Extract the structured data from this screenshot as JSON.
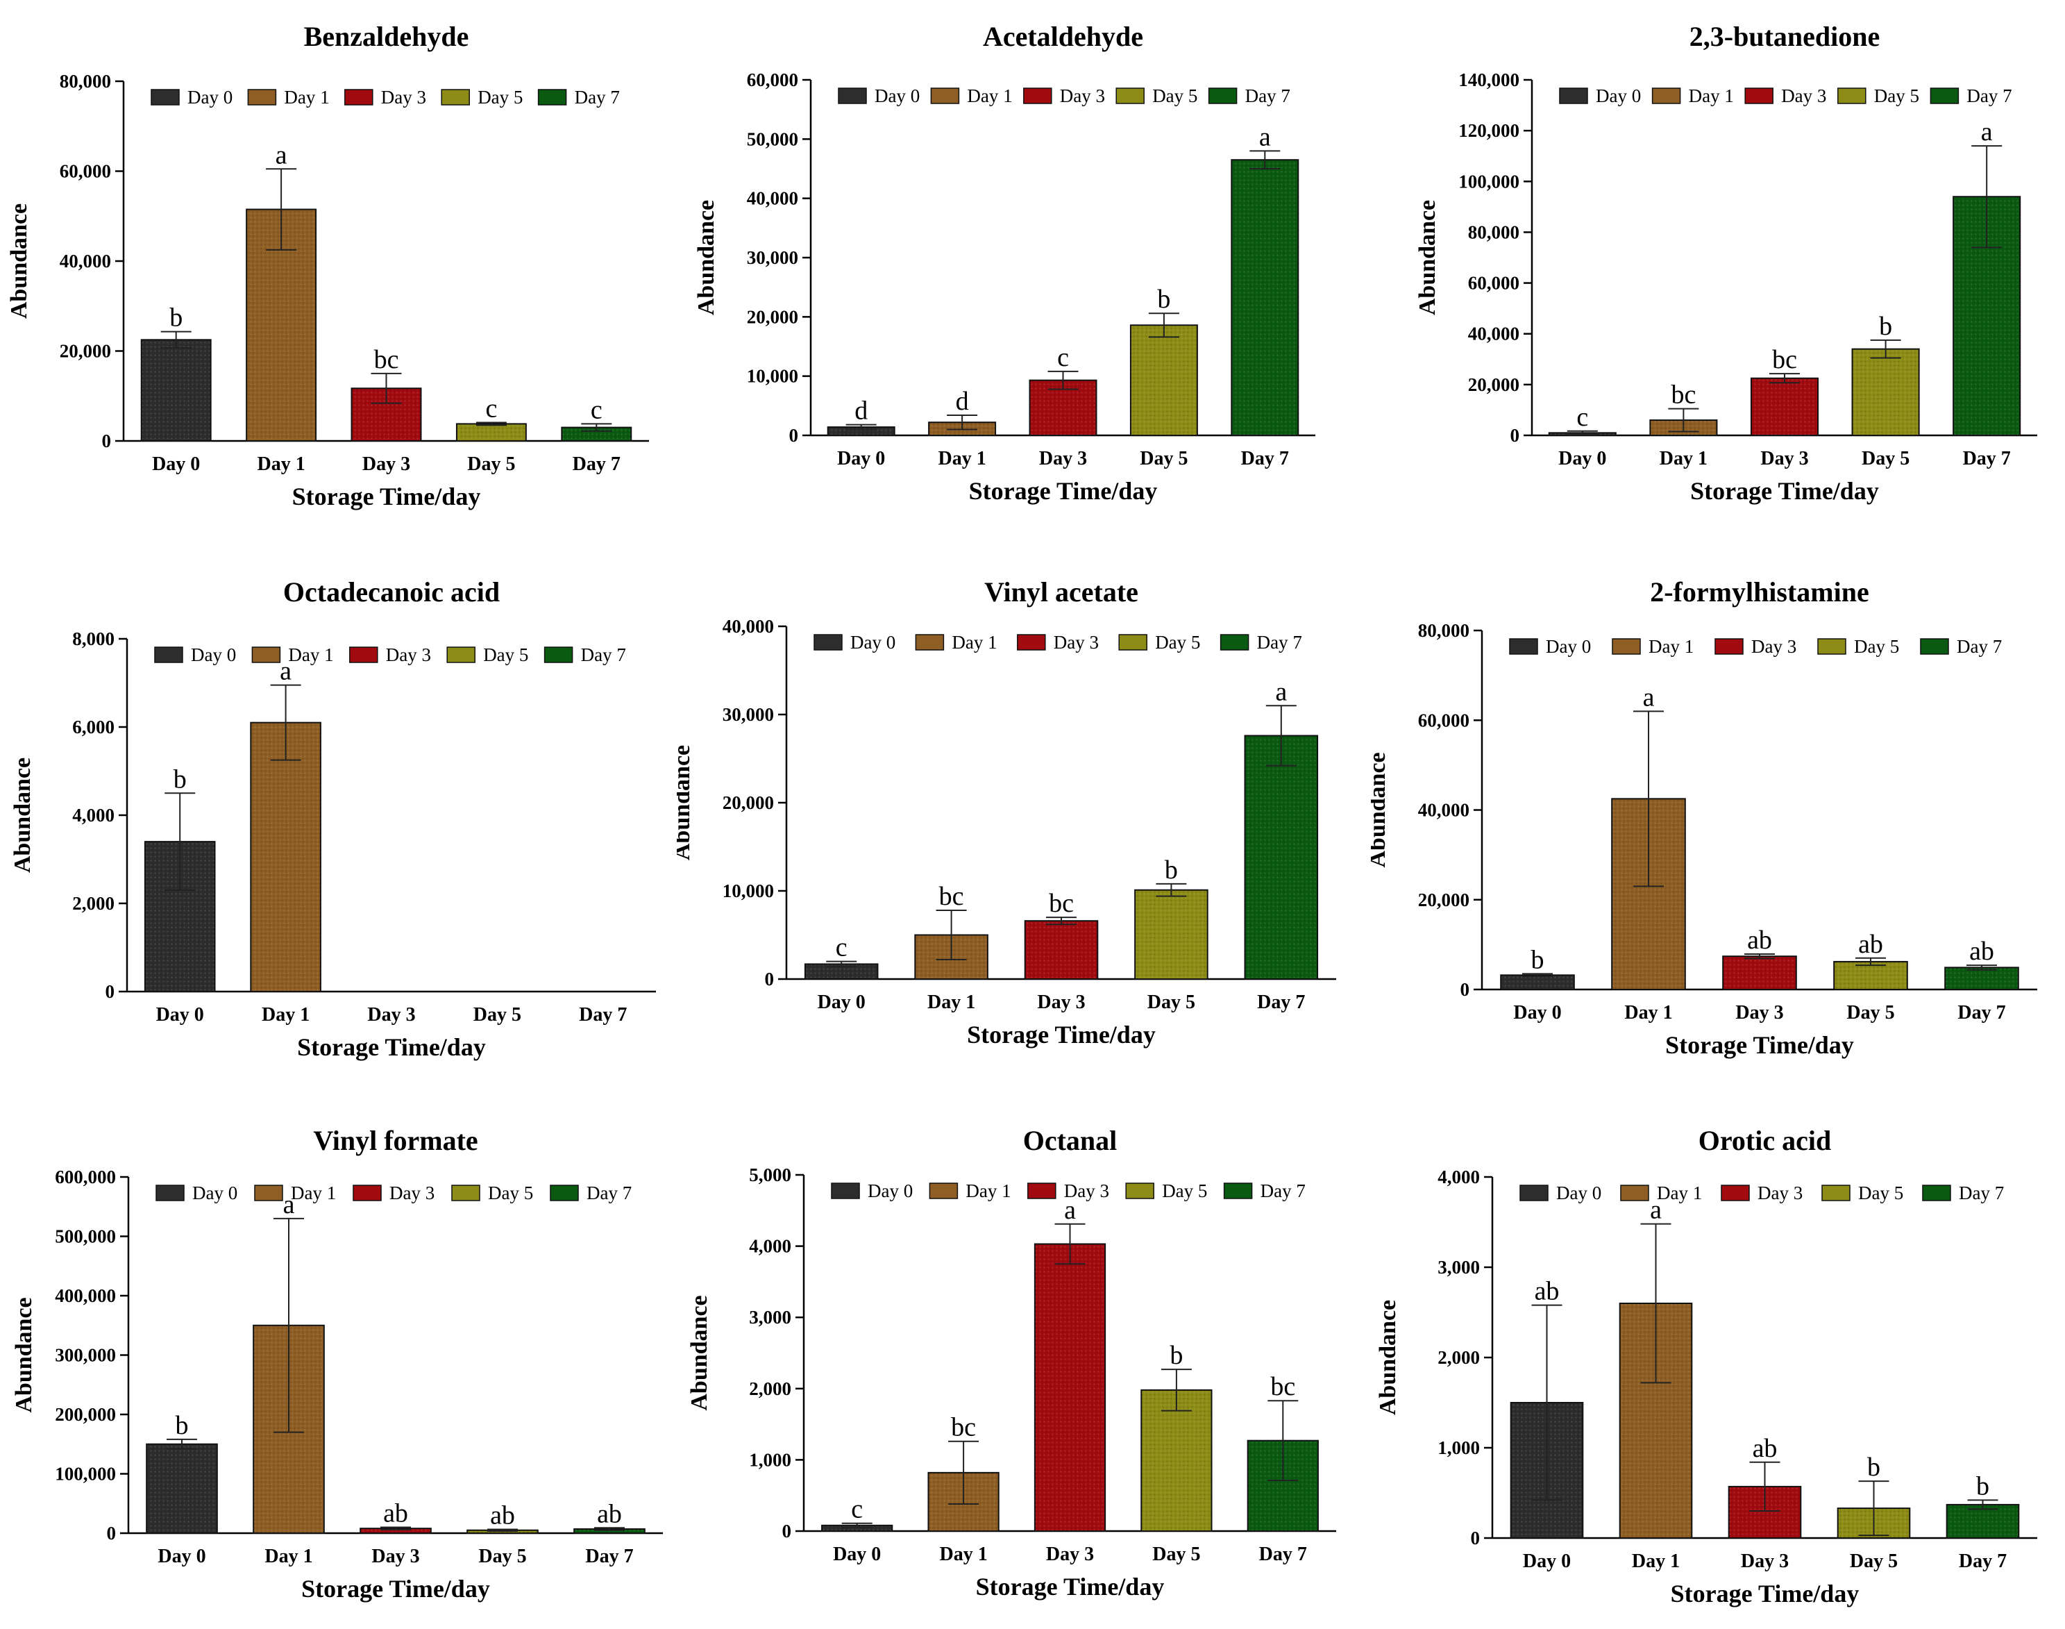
{
  "colors": {
    "Day 0": "#2d2d2d",
    "Day 1": "#8e5e24",
    "Day 3": "#a10b10",
    "Day 5": "#8c8c16",
    "Day 7": "#0b5a12"
  },
  "chart_data": [
    {
      "type": "bar",
      "title": "Benzaldehyde",
      "xlabel": "Storage Time/day",
      "ylabel": "Abundance",
      "categories": [
        "Day 0",
        "Day 1",
        "Day 3",
        "Day 5",
        "Day 7"
      ],
      "values": [
        22500,
        51500,
        11700,
        3800,
        3000
      ],
      "errors": [
        1800,
        9000,
        3300,
        300,
        800
      ],
      "sig_letters": [
        "b",
        "a",
        "bc",
        "c",
        "c"
      ],
      "ylim": [
        0,
        80000
      ],
      "yticks": [
        0,
        20000,
        40000,
        60000,
        80000
      ],
      "ytick_labels": [
        "0",
        "20,000",
        "40,000",
        "60,000",
        "80,000"
      ],
      "legend": [
        "Day 0",
        "Day 1",
        "Day 3",
        "Day 5",
        "Day 7"
      ],
      "legend_position": "top"
    },
    {
      "type": "bar",
      "title": "Acetaldehyde",
      "xlabel": "Storage Time/day",
      "ylabel": "Abundance",
      "categories": [
        "Day 0",
        "Day 1",
        "Day 3",
        "Day 5",
        "Day 7"
      ],
      "values": [
        1400,
        2200,
        9300,
        18600,
        46500
      ],
      "errors": [
        400,
        1200,
        1500,
        2000,
        1500
      ],
      "sig_letters": [
        "d",
        "d",
        "c",
        "b",
        "a"
      ],
      "ylim": [
        0,
        60000
      ],
      "yticks": [
        0,
        10000,
        20000,
        30000,
        40000,
        50000,
        60000
      ],
      "ytick_labels": [
        "0",
        "10,000",
        "20,000",
        "30,000",
        "40,000",
        "50,000",
        "60,000"
      ],
      "legend": [
        "Day 0",
        "Day 1",
        "Day 3",
        "Day 5",
        "Day 7"
      ],
      "legend_position": "top"
    },
    {
      "type": "bar",
      "title": "2,3-butanedione",
      "xlabel": "Storage Time/day",
      "ylabel": "Abundance",
      "categories": [
        "Day 0",
        "Day 1",
        "Day 3",
        "Day 5",
        "Day 7"
      ],
      "values": [
        1000,
        6000,
        22500,
        34000,
        94000
      ],
      "errors": [
        700,
        4500,
        1800,
        3500,
        20000
      ],
      "sig_letters": [
        "c",
        "bc",
        "bc",
        "b",
        "a"
      ],
      "ylim": [
        0,
        140000
      ],
      "yticks": [
        0,
        20000,
        40000,
        60000,
        80000,
        100000,
        120000,
        140000
      ],
      "ytick_labels": [
        "0",
        "20,000",
        "40,000",
        "60,000",
        "80,000",
        "100,000",
        "120,000",
        "140,000"
      ],
      "legend": [
        "Day 0",
        "Day 1",
        "Day 3",
        "Day 5",
        "Day 7"
      ],
      "legend_position": "top"
    },
    {
      "type": "bar",
      "title": "Octadecanoic acid",
      "xlabel": "Storage Time/day",
      "ylabel": "Abundance",
      "categories": [
        "Day 0",
        "Day 1",
        "Day 3",
        "Day 5",
        "Day 7"
      ],
      "values": [
        3400,
        6100,
        0,
        0,
        0
      ],
      "errors": [
        1100,
        850,
        0,
        0,
        0
      ],
      "sig_letters": [
        "b",
        "a",
        "",
        "",
        ""
      ],
      "ylim": [
        0,
        8000
      ],
      "yticks": [
        0,
        2000,
        4000,
        6000,
        8000
      ],
      "ytick_labels": [
        "0",
        "2,000",
        "4,000",
        "6,000",
        "8,000"
      ],
      "legend": [
        "Day 0",
        "Day 1",
        "Day 3",
        "Day 5",
        "Day 7"
      ],
      "legend_position": "top"
    },
    {
      "type": "bar",
      "title": "Vinyl acetate",
      "xlabel": "Storage Time/day",
      "ylabel": "Abundance",
      "categories": [
        "Day 0",
        "Day 1",
        "Day 3",
        "Day 5",
        "Day 7"
      ],
      "values": [
        1700,
        5000,
        6600,
        10100,
        27600
      ],
      "errors": [
        300,
        2800,
        400,
        700,
        3400
      ],
      "sig_letters": [
        "c",
        "bc",
        "bc",
        "b",
        "a"
      ],
      "ylim": [
        0,
        40000
      ],
      "yticks": [
        0,
        10000,
        20000,
        30000,
        40000
      ],
      "ytick_labels": [
        "0",
        "10,000",
        "20,000",
        "30,000",
        "40,000"
      ],
      "legend": [
        "Day 0",
        "Day 1",
        "Day 3",
        "Day 5",
        "Day 7"
      ],
      "legend_position": "top"
    },
    {
      "type": "bar",
      "title": "2-formylhistamine",
      "xlabel": "Storage Time/day",
      "ylabel": "Abundance",
      "categories": [
        "Day 0",
        "Day 1",
        "Day 3",
        "Day 5",
        "Day 7"
      ],
      "values": [
        3200,
        42500,
        7400,
        6200,
        4900
      ],
      "errors": [
        300,
        19500,
        500,
        800,
        500
      ],
      "sig_letters": [
        "b",
        "a",
        "ab",
        "ab",
        "ab"
      ],
      "ylim": [
        0,
        80000
      ],
      "yticks": [
        0,
        20000,
        40000,
        60000,
        80000
      ],
      "ytick_labels": [
        "0",
        "20,000",
        "40,000",
        "60,000",
        "80,000"
      ],
      "legend": [
        "Day 0",
        "Day 1",
        "Day 3",
        "Day 5",
        "Day 7"
      ],
      "legend_position": "top"
    },
    {
      "type": "bar",
      "title": "Vinyl formate",
      "xlabel": "Storage Time/day",
      "ylabel": "Abundance",
      "categories": [
        "Day 0",
        "Day 1",
        "Day 3",
        "Day 5",
        "Day 7"
      ],
      "values": [
        150000,
        350000,
        8000,
        5000,
        7000
      ],
      "errors": [
        8000,
        180000,
        2000,
        1500,
        2000
      ],
      "sig_letters": [
        "b",
        "a",
        "ab",
        "ab",
        "ab"
      ],
      "ylim": [
        0,
        600000
      ],
      "yticks": [
        0,
        100000,
        200000,
        300000,
        400000,
        500000,
        600000
      ],
      "ytick_labels": [
        "0",
        "100,000",
        "200,000",
        "300,000",
        "400,000",
        "500,000",
        "600,000"
      ],
      "legend": [
        "Day 0",
        "Day 1",
        "Day 3",
        "Day 5",
        "Day 7"
      ],
      "legend_position": "top"
    },
    {
      "type": "bar",
      "title": "Octanal",
      "xlabel": "Storage Time/day",
      "ylabel": "Abundance",
      "categories": [
        "Day 0",
        "Day 1",
        "Day 3",
        "Day 5",
        "Day 7"
      ],
      "values": [
        80,
        820,
        4030,
        1980,
        1270
      ],
      "errors": [
        30,
        440,
        280,
        290,
        560
      ],
      "sig_letters": [
        "c",
        "bc",
        "a",
        "b",
        "bc"
      ],
      "ylim": [
        0,
        5000
      ],
      "yticks": [
        0,
        1000,
        2000,
        3000,
        4000,
        5000
      ],
      "ytick_labels": [
        "0",
        "1,000",
        "2,000",
        "3,000",
        "4,000",
        "5,000"
      ],
      "legend": [
        "Day 0",
        "Day 1",
        "Day 3",
        "Day 5",
        "Day 7"
      ],
      "legend_position": "top"
    },
    {
      "type": "bar",
      "title": "Orotic acid",
      "xlabel": "Storage Time/day",
      "ylabel": "Abundance",
      "categories": [
        "Day 0",
        "Day 1",
        "Day 3",
        "Day 5",
        "Day 7"
      ],
      "values": [
        1500,
        2600,
        570,
        330,
        370
      ],
      "errors": [
        1080,
        880,
        270,
        300,
        50
      ],
      "sig_letters": [
        "ab",
        "a",
        "ab",
        "b",
        "b"
      ],
      "ylim": [
        0,
        4000
      ],
      "yticks": [
        0,
        1000,
        2000,
        3000,
        4000
      ],
      "ytick_labels": [
        "0",
        "1,000",
        "2,000",
        "3,000",
        "4,000"
      ],
      "legend": [
        "Day 0",
        "Day 1",
        "Day 3",
        "Day 5",
        "Day 7"
      ],
      "legend_position": "top"
    }
  ]
}
